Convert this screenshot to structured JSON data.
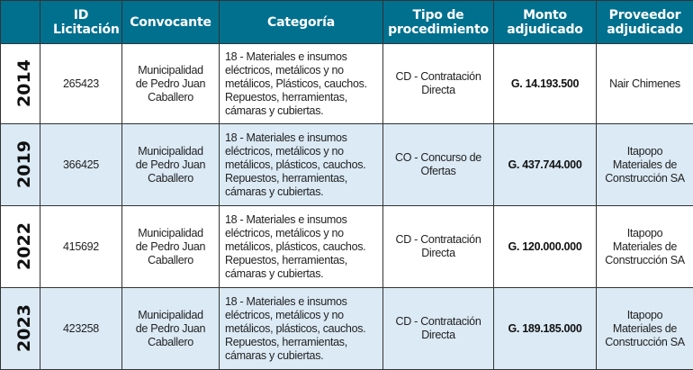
{
  "header_color": "#00708f",
  "alt_row_color": "#dbeaf5",
  "columns": [
    "",
    "ID Licitación",
    "Convocante",
    "Categoría",
    "Tipo de procedimiento",
    "Monto adjudicado",
    "Proveedor adjudicado"
  ],
  "rows": [
    {
      "year": "2014",
      "id": "265423",
      "convocante": "Municipalidad de Pedro Juan Caballero",
      "categoria": "18 - Materiales e insumos eléctricos, metálicos y no metálicos, Plásticos, cauchos. Repuestos, herramientas, cámaras y cubiertas.",
      "tipo": "CD - Contratación Directa",
      "monto": "G. 14.193.500",
      "proveedor": "Nair Chimenes"
    },
    {
      "year": "2019",
      "id": "366425",
      "convocante": "Municipalidad de Pedro Juan Caballero",
      "categoria": "18 - Materiales e insumos eléctricos, metálicos y no metálicos, plásticos, cauchos. Repuestos, herramientas, cámaras y cubiertas.",
      "tipo": "CO - Concurso de Ofertas",
      "monto": "G. 437.744.000",
      "proveedor": "Itapopo Materiales de Construcción SA"
    },
    {
      "year": "2022",
      "id": "415692",
      "convocante": "Municipalidad de Pedro Juan Caballero",
      "categoria": "18 - Materiales e insumos eléctricos, metálicos y no metálicos, plásticos, cauchos. Repuestos, herramientas, cámaras y cubiertas.",
      "tipo": "CD - Contratación Directa",
      "monto": "G. 120.000.000",
      "proveedor": "Itapopo Materiales de Construcción SA"
    },
    {
      "year": "2023",
      "id": "423258",
      "convocante": "Municipalidad de Pedro Juan Caballero",
      "categoria": "18 - Materiales e insumos eléctricos, metálicos y no metálicos, plásticos, cauchos. Repuestos, herramientas, cámaras y cubiertas.",
      "tipo": "CD - Contratación Directa",
      "monto": "G. 189.185.000",
      "proveedor": "Itapopo Materiales de Construcción SA"
    }
  ]
}
